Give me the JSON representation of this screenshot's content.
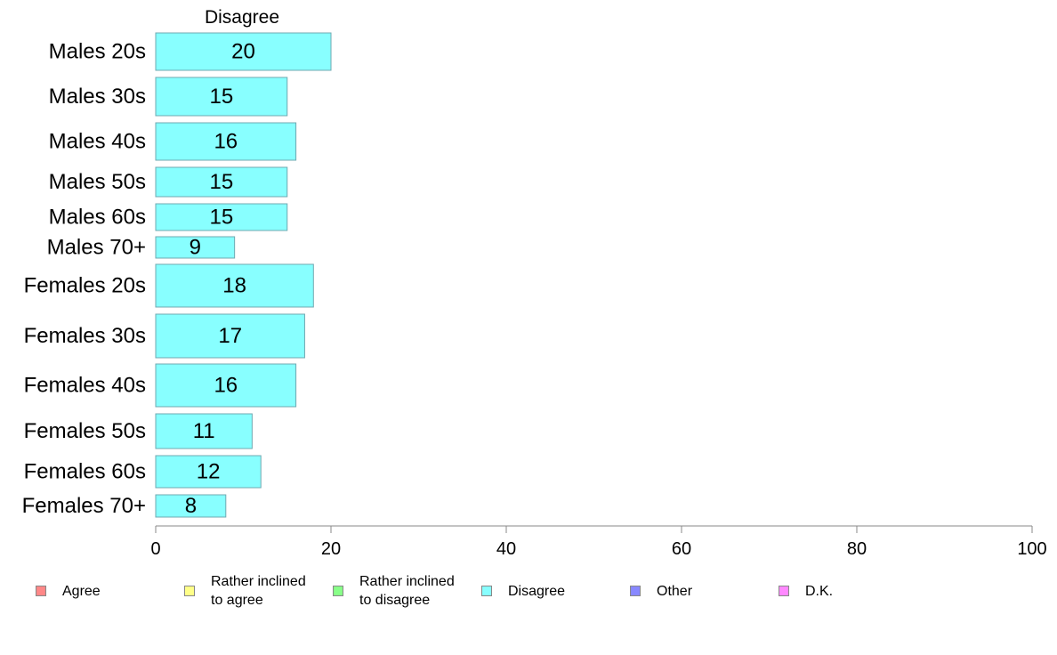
{
  "chart_data": {
    "type": "bar",
    "orientation": "horizontal",
    "series_title": "Disagree",
    "categories": [
      "Males 20s",
      "Males 30s",
      "Males 40s",
      "Males 50s",
      "Males 60s",
      "Males 70+",
      "Females 20s",
      "Females 30s",
      "Females 40s",
      "Females 50s",
      "Females 60s",
      "Females 70+"
    ],
    "values": [
      20,
      15,
      16,
      15,
      15,
      9,
      18,
      17,
      16,
      11,
      12,
      8
    ],
    "value_labels": [
      "20",
      "15",
      "16",
      "15",
      "15",
      "9",
      "18",
      "17",
      "16",
      "11",
      "12",
      "8"
    ],
    "xlim": [
      0,
      100
    ],
    "xticks": [
      0,
      20,
      40,
      60,
      80,
      100
    ],
    "xtick_labels": [
      "0",
      "20",
      "40",
      "60",
      "80",
      "100"
    ],
    "grid": false,
    "bar_color": "#88ffff",
    "legend_position": "bottom",
    "legend": [
      {
        "label": "Agree",
        "color": "#ff8888"
      },
      {
        "label": "Rather inclined\nto agree",
        "color": "#ffff88"
      },
      {
        "label": "Rather inclined\nto disagree",
        "color": "#88ff88"
      },
      {
        "label": "Disagree",
        "color": "#88ffff"
      },
      {
        "label": "Other",
        "color": "#8888ff"
      },
      {
        "label": "D.K.",
        "color": "#ff88ff"
      }
    ]
  }
}
